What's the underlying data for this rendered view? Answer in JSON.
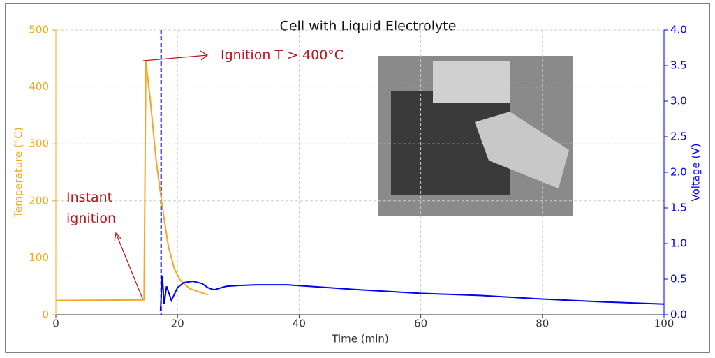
{
  "chart_data": {
    "type": "line",
    "title": "Cell with Liquid Electrolyte",
    "xlabel": "Time (min)",
    "ylabel": "Temperature (°C)",
    "y2label": "Voltage (V)",
    "xlim": [
      0,
      100
    ],
    "xticks": [
      0,
      20,
      40,
      60,
      80,
      100
    ],
    "ylim": [
      0,
      500
    ],
    "yticks": [
      0,
      100,
      200,
      300,
      400,
      500
    ],
    "y2lim": [
      0,
      4.0
    ],
    "y2ticks": [
      {
        "value": 0,
        "label": "0.0"
      },
      0.5,
      {
        "value": 1,
        "label": "1.0"
      },
      1.5,
      {
        "value": 2,
        "label": "2.0"
      },
      2.5,
      {
        "value": 3,
        "label": "3.0"
      },
      3.5,
      {
        "value": 4,
        "label": "4.0"
      }
    ],
    "grid": true,
    "ycolor": "#f5a623",
    "y2color": "#0000ee",
    "vline_x": 17.3,
    "series": [
      {
        "color": "#f5a623",
        "axis": "y",
        "x": [
          0,
          14.5,
          14.8,
          15.5,
          16.5,
          17.5,
          18.5,
          19.5,
          20.5,
          22,
          23.5,
          25
        ],
        "values": [
          25,
          26,
          445,
          380,
          270,
          190,
          120,
          80,
          60,
          46,
          40,
          35
        ]
      },
      {
        "color": "#0000ee",
        "axis": "y2",
        "x": [
          17.2,
          17.5,
          17.8,
          18.2,
          19,
          20,
          21,
          22.5,
          24,
          25,
          26,
          28,
          30,
          33,
          38,
          45,
          50,
          60,
          70,
          80,
          90,
          100
        ],
        "values": [
          0.05,
          0.55,
          0.15,
          0.4,
          0.2,
          0.38,
          0.45,
          0.47,
          0.44,
          0.38,
          0.35,
          0.4,
          0.41,
          0.42,
          0.42,
          0.38,
          0.35,
          0.3,
          0.27,
          0.22,
          0.18,
          0.15
        ]
      }
    ],
    "annotations": [
      {
        "text": "Ignition T > 400°C"
      },
      {
        "text": "Instant ignition"
      }
    ]
  }
}
